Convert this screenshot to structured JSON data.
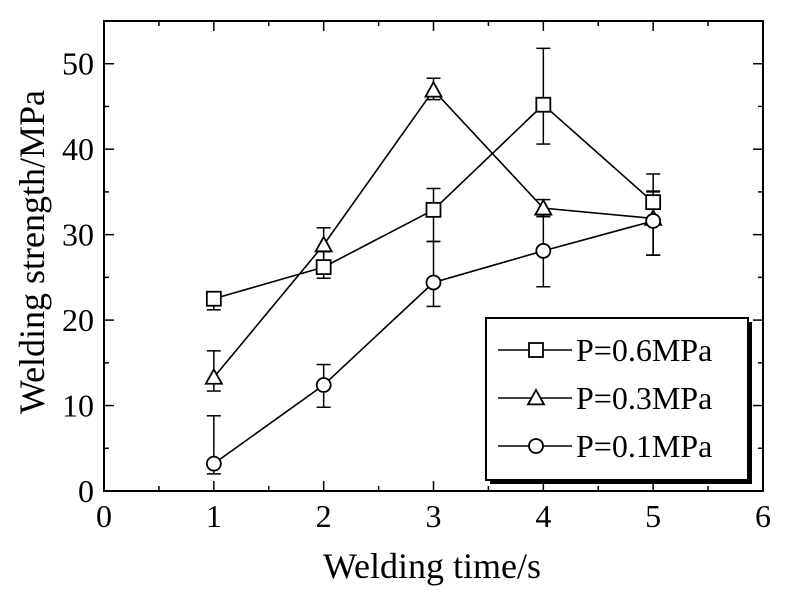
{
  "chart_data": {
    "type": "line",
    "xlabel": "Welding time/s",
    "ylabel": "Welding strength/MPa",
    "xlim": [
      0,
      6
    ],
    "ylim": [
      0,
      55
    ],
    "x_ticks": [
      0,
      1,
      2,
      3,
      4,
      5,
      6
    ],
    "y_ticks": [
      0,
      10,
      20,
      30,
      40,
      50
    ],
    "x_tick_labels": [
      "0",
      "1",
      "2",
      "3",
      "4",
      "5",
      "6"
    ],
    "y_tick_labels": [
      "0",
      "10",
      "20",
      "30",
      "40",
      "50"
    ],
    "grid": false,
    "legend_position": "bottom-right",
    "series": [
      {
        "name": "P=0.6MPa",
        "marker": "square",
        "x": [
          1,
          2,
          3,
          4,
          5
        ],
        "y": [
          22.5,
          26.2,
          32.9,
          45.2,
          33.8
        ],
        "error_low": [
          21.2,
          24.9,
          29.2,
          40.6,
          27.6
        ],
        "error_high": [
          23.3,
          28.0,
          35.4,
          51.8,
          37.1
        ]
      },
      {
        "name": "P=0.3MPa",
        "marker": "triangle",
        "x": [
          1,
          2,
          3,
          4,
          5
        ],
        "y": [
          13.3,
          28.8,
          46.9,
          33.1,
          31.9
        ],
        "error_low": [
          11.7,
          26.0,
          45.8,
          32.1,
          27.6
        ],
        "error_high": [
          16.4,
          30.8,
          48.3,
          34.1,
          35.1
        ]
      },
      {
        "name": "P=0.1MPa",
        "marker": "circle",
        "x": [
          1,
          2,
          3,
          4,
          5
        ],
        "y": [
          3.2,
          12.4,
          24.4,
          28.1,
          31.6
        ],
        "error_low": [
          2.0,
          9.8,
          21.6,
          23.9,
          27.6
        ],
        "error_high": [
          8.8,
          14.8,
          29.2,
          32.3,
          35.0
        ]
      }
    ]
  }
}
